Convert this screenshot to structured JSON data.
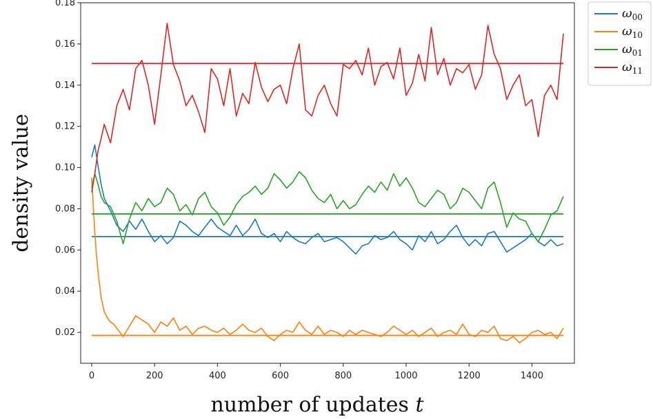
{
  "chart_data": {
    "type": "line",
    "title": "",
    "xlabel": "number of updates ",
    "xlabel_var": "t",
    "ylabel": "density value",
    "xlim": [
      -35,
      1535
    ],
    "ylim": [
      0.005,
      0.18
    ],
    "xticks": [
      0,
      200,
      400,
      600,
      800,
      1000,
      1200,
      1400
    ],
    "yticks": [
      0.02,
      0.04,
      0.06,
      0.08,
      0.1,
      0.12,
      0.14,
      0.16,
      0.18
    ],
    "ytick_labels": [
      "0.02",
      "0.04",
      "0.06",
      "0.08",
      "0.10",
      "0.12",
      "0.14",
      "0.16",
      "0.18"
    ],
    "grid": false,
    "legend_position": "outside-top-right",
    "series": [
      {
        "name": "ω",
        "sub": "00",
        "color": "#1f77b4",
        "target": 0.0665,
        "x": [
          0,
          10,
          20,
          30,
          40,
          60,
          80,
          100,
          120,
          140,
          160,
          180,
          200,
          220,
          240,
          260,
          280,
          300,
          320,
          340,
          360,
          380,
          400,
          420,
          440,
          460,
          480,
          500,
          520,
          540,
          560,
          580,
          600,
          620,
          640,
          660,
          680,
          700,
          720,
          740,
          760,
          780,
          800,
          820,
          840,
          860,
          880,
          900,
          920,
          940,
          960,
          980,
          1000,
          1020,
          1040,
          1060,
          1080,
          1100,
          1120,
          1140,
          1160,
          1180,
          1200,
          1220,
          1240,
          1260,
          1280,
          1300,
          1320,
          1340,
          1360,
          1380,
          1400,
          1420,
          1440,
          1460,
          1480,
          1500
        ],
        "y": [
          0.105,
          0.111,
          0.101,
          0.092,
          0.085,
          0.079,
          0.072,
          0.069,
          0.074,
          0.07,
          0.075,
          0.069,
          0.064,
          0.067,
          0.063,
          0.066,
          0.074,
          0.072,
          0.069,
          0.067,
          0.071,
          0.075,
          0.071,
          0.069,
          0.067,
          0.072,
          0.067,
          0.07,
          0.075,
          0.068,
          0.066,
          0.068,
          0.064,
          0.069,
          0.066,
          0.064,
          0.063,
          0.066,
          0.068,
          0.064,
          0.065,
          0.066,
          0.064,
          0.061,
          0.058,
          0.062,
          0.063,
          0.067,
          0.065,
          0.066,
          0.069,
          0.065,
          0.063,
          0.06,
          0.067,
          0.064,
          0.069,
          0.063,
          0.065,
          0.069,
          0.072,
          0.066,
          0.062,
          0.065,
          0.062,
          0.068,
          0.069,
          0.064,
          0.059,
          0.061,
          0.063,
          0.065,
          0.068,
          0.064,
          0.062,
          0.065,
          0.062,
          0.063
        ]
      },
      {
        "name": "ω",
        "sub": "10",
        "color": "#ff7f0e",
        "target": 0.0185,
        "x": [
          0,
          5,
          10,
          15,
          20,
          25,
          30,
          40,
          50,
          60,
          70,
          80,
          100,
          120,
          140,
          160,
          180,
          200,
          220,
          240,
          260,
          280,
          300,
          320,
          340,
          360,
          380,
          400,
          420,
          440,
          460,
          480,
          500,
          520,
          540,
          560,
          580,
          600,
          620,
          640,
          660,
          680,
          700,
          720,
          740,
          760,
          780,
          800,
          820,
          840,
          860,
          880,
          900,
          920,
          940,
          960,
          980,
          1000,
          1020,
          1040,
          1060,
          1080,
          1100,
          1120,
          1140,
          1160,
          1180,
          1200,
          1220,
          1240,
          1260,
          1280,
          1300,
          1320,
          1340,
          1360,
          1380,
          1400,
          1420,
          1440,
          1460,
          1480,
          1500
        ],
        "y": [
          0.095,
          0.082,
          0.068,
          0.058,
          0.05,
          0.043,
          0.037,
          0.03,
          0.027,
          0.025,
          0.024,
          0.022,
          0.018,
          0.023,
          0.028,
          0.026,
          0.024,
          0.02,
          0.025,
          0.023,
          0.027,
          0.021,
          0.023,
          0.019,
          0.022,
          0.023,
          0.021,
          0.02,
          0.022,
          0.019,
          0.021,
          0.024,
          0.021,
          0.02,
          0.022,
          0.018,
          0.016,
          0.019,
          0.021,
          0.02,
          0.025,
          0.021,
          0.019,
          0.023,
          0.019,
          0.021,
          0.02,
          0.018,
          0.021,
          0.019,
          0.021,
          0.02,
          0.019,
          0.018,
          0.02,
          0.023,
          0.021,
          0.019,
          0.021,
          0.018,
          0.02,
          0.022,
          0.018,
          0.02,
          0.021,
          0.019,
          0.024,
          0.019,
          0.018,
          0.021,
          0.02,
          0.023,
          0.017,
          0.016,
          0.018,
          0.015,
          0.017,
          0.02,
          0.021,
          0.019,
          0.02,
          0.017,
          0.022
        ]
      },
      {
        "name": "ω",
        "sub": "01",
        "color": "#2ca02c",
        "target": 0.0775,
        "x": [
          0,
          10,
          20,
          30,
          40,
          60,
          80,
          100,
          120,
          140,
          160,
          180,
          200,
          220,
          240,
          260,
          280,
          300,
          320,
          340,
          360,
          380,
          400,
          420,
          440,
          460,
          480,
          500,
          520,
          540,
          560,
          580,
          600,
          620,
          640,
          660,
          680,
          700,
          720,
          740,
          760,
          780,
          800,
          820,
          840,
          860,
          880,
          900,
          920,
          940,
          960,
          980,
          1000,
          1020,
          1040,
          1060,
          1080,
          1100,
          1120,
          1140,
          1160,
          1180,
          1200,
          1220,
          1240,
          1260,
          1280,
          1300,
          1320,
          1340,
          1360,
          1380,
          1400,
          1420,
          1440,
          1460,
          1480,
          1500
        ],
        "y": [
          0.09,
          0.097,
          0.092,
          0.086,
          0.083,
          0.081,
          0.074,
          0.063,
          0.075,
          0.083,
          0.079,
          0.085,
          0.081,
          0.083,
          0.09,
          0.087,
          0.079,
          0.082,
          0.077,
          0.085,
          0.088,
          0.081,
          0.078,
          0.072,
          0.076,
          0.082,
          0.086,
          0.088,
          0.091,
          0.087,
          0.09,
          0.097,
          0.094,
          0.09,
          0.093,
          0.098,
          0.095,
          0.089,
          0.085,
          0.083,
          0.087,
          0.08,
          0.084,
          0.08,
          0.082,
          0.087,
          0.091,
          0.088,
          0.093,
          0.089,
          0.097,
          0.091,
          0.095,
          0.09,
          0.083,
          0.081,
          0.085,
          0.089,
          0.087,
          0.08,
          0.083,
          0.09,
          0.088,
          0.084,
          0.08,
          0.09,
          0.093,
          0.083,
          0.071,
          0.078,
          0.075,
          0.074,
          0.068,
          0.064,
          0.07,
          0.077,
          0.079,
          0.086
        ]
      },
      {
        "name": "ω",
        "sub": "11",
        "color": "#d62728",
        "target": 0.1505,
        "x": [
          0,
          10,
          20,
          30,
          40,
          60,
          80,
          100,
          120,
          140,
          160,
          180,
          200,
          220,
          240,
          260,
          280,
          300,
          320,
          340,
          360,
          380,
          400,
          420,
          440,
          460,
          480,
          500,
          520,
          540,
          560,
          580,
          600,
          620,
          640,
          660,
          680,
          700,
          720,
          740,
          760,
          780,
          800,
          820,
          840,
          860,
          880,
          900,
          920,
          940,
          960,
          980,
          1000,
          1020,
          1040,
          1060,
          1080,
          1100,
          1120,
          1140,
          1160,
          1180,
          1200,
          1220,
          1240,
          1260,
          1280,
          1300,
          1320,
          1340,
          1360,
          1380,
          1400,
          1420,
          1440,
          1460,
          1480,
          1500
        ],
        "y": [
          0.088,
          0.097,
          0.108,
          0.114,
          0.121,
          0.112,
          0.13,
          0.138,
          0.128,
          0.148,
          0.152,
          0.14,
          0.121,
          0.145,
          0.17,
          0.15,
          0.142,
          0.13,
          0.135,
          0.127,
          0.117,
          0.148,
          0.143,
          0.13,
          0.148,
          0.125,
          0.136,
          0.131,
          0.151,
          0.139,
          0.132,
          0.138,
          0.14,
          0.131,
          0.148,
          0.16,
          0.128,
          0.125,
          0.135,
          0.14,
          0.131,
          0.125,
          0.15,
          0.148,
          0.152,
          0.145,
          0.158,
          0.14,
          0.149,
          0.151,
          0.143,
          0.158,
          0.135,
          0.141,
          0.155,
          0.142,
          0.168,
          0.145,
          0.153,
          0.14,
          0.148,
          0.146,
          0.15,
          0.138,
          0.145,
          0.169,
          0.155,
          0.148,
          0.133,
          0.14,
          0.145,
          0.13,
          0.133,
          0.115,
          0.135,
          0.14,
          0.133,
          0.165
        ]
      }
    ]
  }
}
